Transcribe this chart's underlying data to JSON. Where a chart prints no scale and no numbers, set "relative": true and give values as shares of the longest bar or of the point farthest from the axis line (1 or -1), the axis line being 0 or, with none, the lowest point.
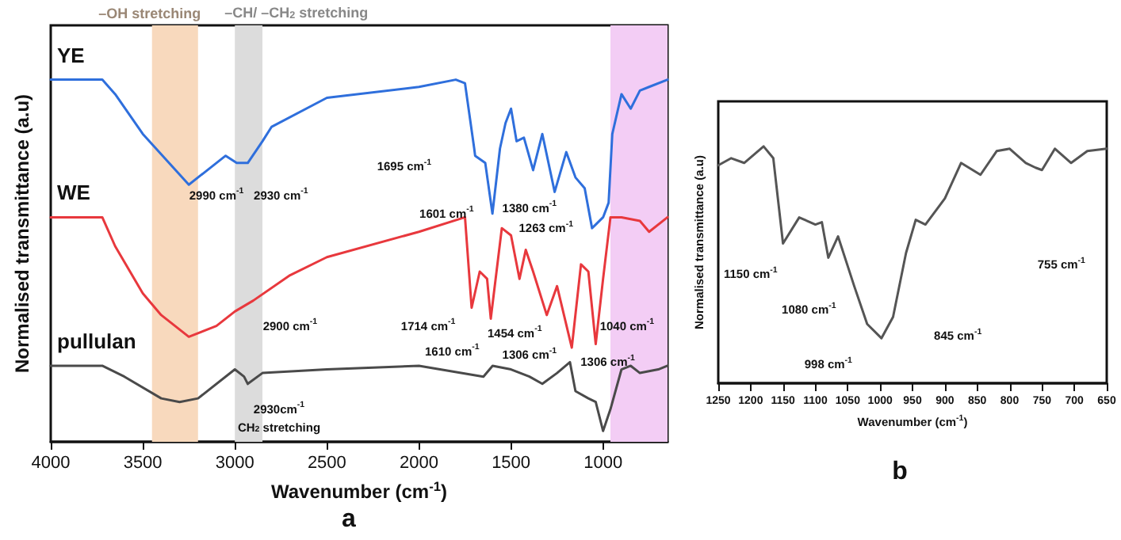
{
  "chart_data": [
    {
      "type": "line",
      "title": "a",
      "xlabel": "Wavenumber (cm$^{-1}$)",
      "ylabel": "Normalised transmittance (a.u)",
      "relative": true,
      "xlim": [
        4000,
        650
      ],
      "xticks": [
        4000,
        3500,
        3000,
        2500,
        2000,
        1500,
        1000
      ],
      "legend": false,
      "grid": false,
      "marker": "none",
      "series": [
        {
          "name": "YE",
          "color": "#2f6fdc",
          "x": [
            4000,
            3720,
            3650,
            3500,
            3250,
            3050,
            2990,
            2930,
            2850,
            2800,
            2500,
            2000,
            1800,
            1750,
            1700,
            1695,
            1640,
            1601,
            1560,
            1530,
            1500,
            1470,
            1430,
            1380,
            1330,
            1263,
            1200,
            1150,
            1100,
            1060,
            1040,
            1000,
            970,
            950,
            900,
            850,
            800,
            750,
            650
          ],
          "values": [
            1.0,
            1.0,
            0.96,
            0.85,
            0.71,
            0.79,
            0.77,
            0.77,
            0.83,
            0.87,
            0.95,
            0.98,
            1.0,
            0.99,
            0.81,
            0.79,
            0.77,
            0.63,
            0.81,
            0.88,
            0.92,
            0.83,
            0.84,
            0.75,
            0.85,
            0.69,
            0.8,
            0.73,
            0.7,
            0.59,
            0.6,
            0.62,
            0.66,
            0.85,
            0.96,
            0.92,
            0.97,
            0.98,
            1.0
          ]
        },
        {
          "name": "WE",
          "color": "#e8383d",
          "x": [
            4000,
            3720,
            3650,
            3500,
            3400,
            3250,
            3100,
            3000,
            2900,
            2700,
            2500,
            2000,
            1750,
            1714,
            1670,
            1630,
            1610,
            1550,
            1500,
            1454,
            1420,
            1380,
            1306,
            1250,
            1170,
            1120,
            1080,
            1040,
            1000,
            960,
            900,
            800,
            750,
            650
          ],
          "values": [
            0.62,
            0.62,
            0.54,
            0.41,
            0.35,
            0.29,
            0.32,
            0.36,
            0.39,
            0.46,
            0.51,
            0.58,
            0.62,
            0.37,
            0.47,
            0.45,
            0.34,
            0.59,
            0.57,
            0.45,
            0.53,
            0.47,
            0.35,
            0.43,
            0.26,
            0.49,
            0.47,
            0.27,
            0.45,
            0.62,
            0.62,
            0.61,
            0.58,
            0.62
          ]
        },
        {
          "name": "pullulan",
          "color": "#4a4a4a",
          "x": [
            4000,
            3720,
            3600,
            3400,
            3300,
            3200,
            3000,
            2950,
            2930,
            2850,
            2500,
            2000,
            1650,
            1600,
            1500,
            1400,
            1330,
            1250,
            1180,
            1150,
            1080,
            1040,
            1000,
            960,
            900,
            850,
            800,
            700,
            650
          ],
          "values": [
            0.21,
            0.21,
            0.18,
            0.12,
            0.11,
            0.12,
            0.2,
            0.18,
            0.16,
            0.19,
            0.2,
            0.21,
            0.18,
            0.21,
            0.2,
            0.18,
            0.16,
            0.19,
            0.22,
            0.14,
            0.12,
            0.11,
            0.03,
            0.09,
            0.2,
            0.21,
            0.19,
            0.2,
            0.21
          ]
        }
      ],
      "bands": [
        {
          "axis": "x",
          "from": 3450,
          "to": 3200,
          "label": "–OH stretching",
          "color": "#f8d9bd"
        },
        {
          "axis": "x",
          "from": 3000,
          "to": 2850,
          "label": "–CH/ –CH$_{2}$ stretching",
          "color": "#dcdcdc"
        },
        {
          "axis": "x",
          "from": 960,
          "to": 650,
          "color": "#f3cdf5"
        }
      ],
      "annotations": [
        "2990 cm$^{-1}$",
        "2930 cm$^{-1}$",
        "1695 cm$^{-1}$",
        "1601 cm$^{-1}$",
        "1380 cm$^{-1}$",
        "1263 cm$^{-1}$",
        "2900 cm$^{-1}$",
        "1714 cm$^{-1}$",
        "1610 cm$^{-1}$",
        "1454 cm$^{-1}$",
        "1306 cm$^{-1}$",
        "1306 cm$^{-1}$",
        "1040 cm$^{-1}$",
        "2930cm$^{-1}$",
        "CH$_{2}$ stretching"
      ]
    },
    {
      "type": "line",
      "title": "b",
      "xlabel": "Wavenumber (cm$^{-1}$)",
      "ylabel": "Normalised transmittance (a.u)",
      "relative": true,
      "xlim": [
        1250,
        650
      ],
      "xticks": [
        1250,
        1200,
        1150,
        1100,
        1050,
        1000,
        950,
        900,
        850,
        800,
        750,
        700,
        650
      ],
      "legend": false,
      "grid": false,
      "marker": "none",
      "series": [
        {
          "color": "#555555",
          "x": [
            1250,
            1230,
            1210,
            1180,
            1165,
            1150,
            1125,
            1100,
            1090,
            1080,
            1065,
            1040,
            1020,
            998,
            980,
            960,
            945,
            930,
            900,
            875,
            845,
            820,
            800,
            775,
            760,
            750,
            730,
            705,
            680,
            650
          ],
          "values": [
            0.92,
            0.95,
            0.93,
            1.0,
            0.95,
            0.59,
            0.7,
            0.67,
            0.68,
            0.53,
            0.62,
            0.41,
            0.25,
            0.19,
            0.28,
            0.55,
            0.69,
            0.67,
            0.78,
            0.93,
            0.88,
            0.98,
            0.99,
            0.93,
            0.91,
            0.9,
            0.99,
            0.93,
            0.98,
            0.99
          ]
        }
      ],
      "annotations": [
        "1150 cm$^{-1}$",
        "1080 cm$^{-1}$",
        "998 cm$^{-1}$",
        "845 cm$^{-1}$",
        "755 cm$^{-1}$"
      ]
    }
  ]
}
